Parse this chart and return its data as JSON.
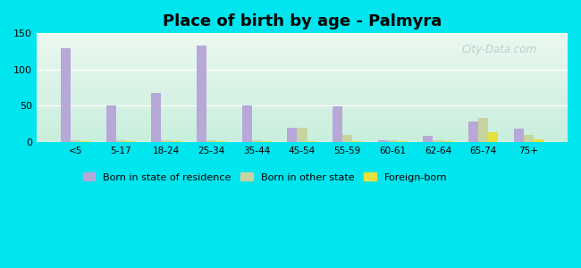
{
  "title": "Place of birth by age - Palmyra",
  "categories": [
    "<5",
    "5-17",
    "18-24",
    "25-34",
    "35-44",
    "45-54",
    "55-59",
    "60-61",
    "62-64",
    "65-74",
    "75+"
  ],
  "born_in_state": [
    130,
    50,
    68,
    133,
    50,
    20,
    49,
    2,
    8,
    28,
    18
  ],
  "born_in_other_state": [
    2,
    2,
    2,
    2,
    2,
    20,
    10,
    2,
    2,
    33,
    10
  ],
  "foreign_born": [
    1,
    1,
    1,
    1,
    1,
    1,
    1,
    1,
    1,
    13,
    4
  ],
  "ylim": [
    0,
    150
  ],
  "yticks": [
    0,
    50,
    100,
    150
  ],
  "color_state": "#b8a8d8",
  "color_other": "#c8d4a0",
  "color_foreign": "#e8e040",
  "bg_color_outer": "#00e5ee",
  "bg_color_plot_top": "#eaf6ee",
  "bg_color_plot_bottom": "#cceedd",
  "legend_labels": [
    "Born in state of residence",
    "Born in other state",
    "Foreign-born"
  ],
  "bar_width": 0.22,
  "title_fontsize": 13,
  "watermark": "City-Data.com"
}
